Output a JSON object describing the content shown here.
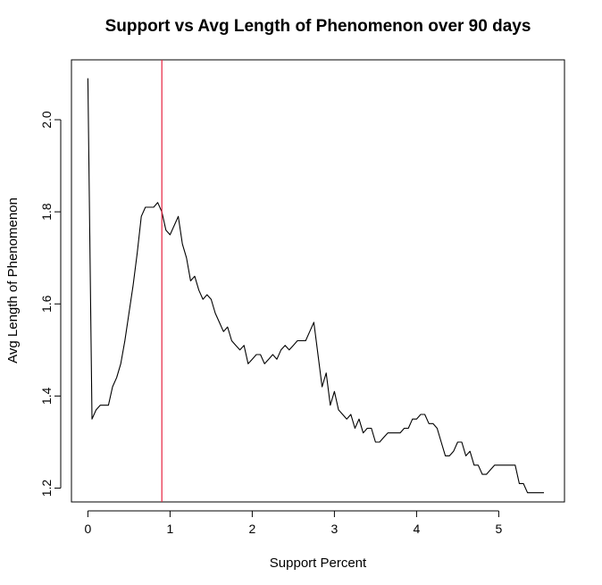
{
  "chart_data": {
    "type": "line",
    "title": "Support vs Avg Length of Phenomenon over 90 days",
    "xlabel": "Support Percent",
    "ylabel": "Avg Length of Phenomenon",
    "xlim": [
      -0.2,
      5.8
    ],
    "ylim": [
      1.17,
      2.13
    ],
    "x_ticks": [
      0,
      1,
      2,
      3,
      4,
      5
    ],
    "y_ticks": [
      1.2,
      1.4,
      1.6,
      1.8,
      2.0
    ],
    "x_tick_labels": [
      "0",
      "1",
      "2",
      "3",
      "4",
      "5"
    ],
    "y_tick_labels": [
      "1.2",
      "1.4",
      "1.6",
      "1.8",
      "2.0"
    ],
    "grid": false,
    "series": [
      {
        "line_color": "#000000",
        "x": [
          0.0,
          0.05,
          0.1,
          0.15,
          0.2,
          0.25,
          0.3,
          0.35,
          0.4,
          0.45,
          0.5,
          0.55,
          0.6,
          0.65,
          0.7,
          0.75,
          0.8,
          0.85,
          0.9,
          0.95,
          1.0,
          1.05,
          1.1,
          1.15,
          1.2,
          1.25,
          1.3,
          1.35,
          1.4,
          1.45,
          1.5,
          1.55,
          1.6,
          1.65,
          1.7,
          1.75,
          1.8,
          1.85,
          1.9,
          1.95,
          2.0,
          2.05,
          2.1,
          2.15,
          2.2,
          2.25,
          2.3,
          2.35,
          2.4,
          2.45,
          2.5,
          2.55,
          2.6,
          2.65,
          2.7,
          2.75,
          2.8,
          2.85,
          2.9,
          2.95,
          3.0,
          3.05,
          3.1,
          3.15,
          3.2,
          3.25,
          3.3,
          3.35,
          3.4,
          3.45,
          3.5,
          3.55,
          3.6,
          3.65,
          3.7,
          3.75,
          3.8,
          3.85,
          3.9,
          3.95,
          4.0,
          4.05,
          4.1,
          4.15,
          4.2,
          4.25,
          4.3,
          4.35,
          4.4,
          4.45,
          4.5,
          4.55,
          4.6,
          4.65,
          4.7,
          4.75,
          4.8,
          4.85,
          4.9,
          4.95,
          5.0,
          5.05,
          5.1,
          5.15,
          5.2,
          5.25,
          5.3,
          5.35,
          5.4,
          5.45,
          5.5,
          5.55
        ],
        "y": [
          2.09,
          1.35,
          1.37,
          1.38,
          1.38,
          1.38,
          1.42,
          1.44,
          1.47,
          1.52,
          1.58,
          1.64,
          1.71,
          1.79,
          1.81,
          1.81,
          1.81,
          1.82,
          1.8,
          1.76,
          1.75,
          1.77,
          1.79,
          1.73,
          1.7,
          1.65,
          1.66,
          1.63,
          1.61,
          1.62,
          1.61,
          1.58,
          1.56,
          1.54,
          1.55,
          1.52,
          1.51,
          1.5,
          1.51,
          1.47,
          1.48,
          1.49,
          1.49,
          1.47,
          1.48,
          1.49,
          1.48,
          1.5,
          1.51,
          1.5,
          1.51,
          1.52,
          1.52,
          1.52,
          1.54,
          1.56,
          1.49,
          1.42,
          1.45,
          1.38,
          1.41,
          1.37,
          1.36,
          1.35,
          1.36,
          1.33,
          1.35,
          1.32,
          1.33,
          1.33,
          1.3,
          1.3,
          1.31,
          1.32,
          1.32,
          1.32,
          1.32,
          1.33,
          1.33,
          1.35,
          1.35,
          1.36,
          1.36,
          1.34,
          1.34,
          1.33,
          1.3,
          1.27,
          1.27,
          1.28,
          1.3,
          1.3,
          1.27,
          1.28,
          1.25,
          1.25,
          1.23,
          1.23,
          1.24,
          1.25,
          1.25,
          1.25,
          1.25,
          1.25,
          1.25,
          1.21,
          1.21,
          1.19,
          1.19,
          1.19,
          1.19,
          1.19
        ]
      }
    ],
    "vertical_line": {
      "x": 0.9,
      "color": "#e8213f"
    }
  }
}
